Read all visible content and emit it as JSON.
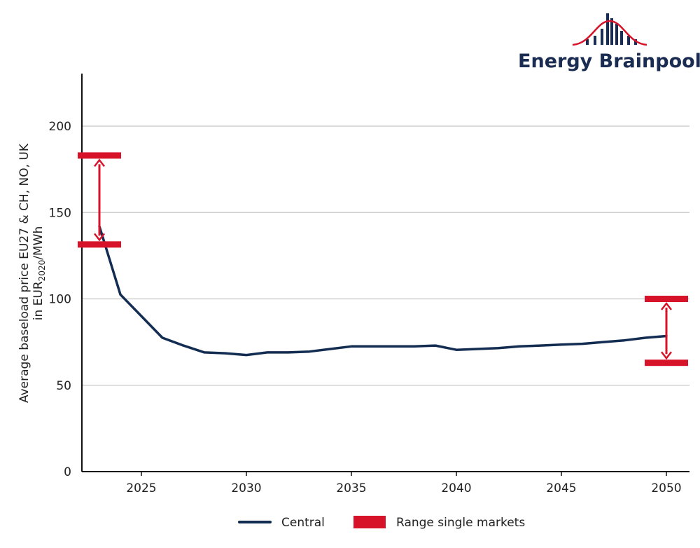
{
  "brand": {
    "name": "Energy Brainpool",
    "color": "#1a2c52",
    "accent": "#d7132a"
  },
  "chart_data": {
    "type": "line",
    "title": "",
    "xlabel": "",
    "ylabel_line1": "Average baseload price EU27 & CH, NO, UK",
    "ylabel_line2": "in EUR2020/MWh",
    "ylabel_unit_prefix": "in EUR",
    "ylabel_unit_sub": "2020",
    "ylabel_unit_suffix": "/MWh",
    "xlim": [
      2022,
      2051
    ],
    "ylim": [
      0,
      230
    ],
    "x_ticks": [
      2025,
      2030,
      2035,
      2040,
      2045,
      2050
    ],
    "x_tick_labels": [
      "2025",
      "2030",
      "2035",
      "2040",
      "2045",
      "2050"
    ],
    "y_ticks": [
      0,
      50,
      100,
      150,
      200
    ],
    "y_tick_labels": [
      "0",
      "50",
      "100",
      "150",
      "200"
    ],
    "grid": "horizontal",
    "series": [
      {
        "name": "Central",
        "color": "#132c52",
        "x": [
          2023,
          2024,
          2025,
          2026,
          2027,
          2028,
          2029,
          2030,
          2031,
          2032,
          2033,
          2034,
          2035,
          2036,
          2037,
          2038,
          2039,
          2040,
          2041,
          2042,
          2043,
          2044,
          2045,
          2046,
          2047,
          2048,
          2049,
          2050
        ],
        "y": [
          142,
          102.5,
          90,
          77.5,
          73,
          69,
          68.5,
          67.5,
          69,
          69,
          69.5,
          71,
          72.5,
          72.5,
          72.5,
          72.5,
          73,
          70.5,
          71,
          71.5,
          72.5,
          73,
          73.5,
          74,
          75,
          76,
          77.5,
          78.5
        ]
      }
    ],
    "ranges": {
      "name": "Range single markets",
      "color": "#d7132a",
      "items": [
        {
          "x": 2023,
          "low": 131.5,
          "high": 183
        },
        {
          "x": 2050,
          "low": 63,
          "high": 100
        }
      ]
    },
    "legend": {
      "position": "bottom-center",
      "entries": [
        "Central",
        "Range single markets"
      ]
    }
  }
}
